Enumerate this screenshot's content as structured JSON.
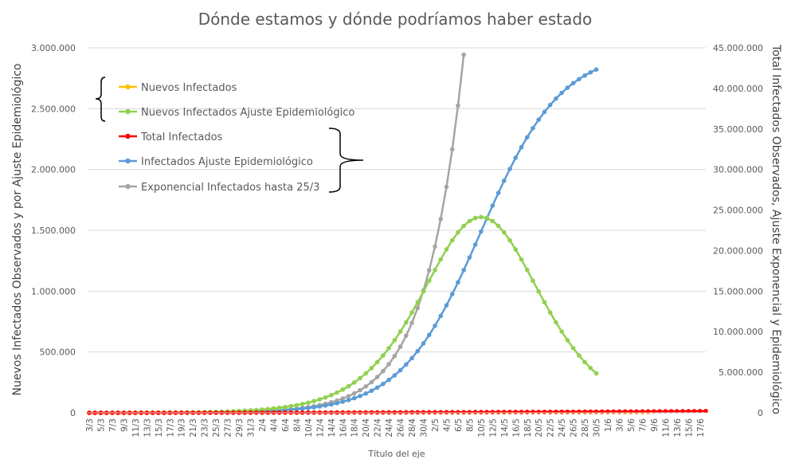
{
  "chart_data": {
    "type": "line",
    "title": "Dónde estamos y dónde podríamos haber estado",
    "xlabel": "Título del eje",
    "ylabel_left": "Nuevos Infectados Observados y por Ajuste Epidemiológico",
    "ylabel_right": "Total Infectados Observados, Ajuste Exponencial y Epidemiológico",
    "ylim_left": [
      0,
      3000000
    ],
    "ylim_right": [
      0,
      45000000
    ],
    "yticks_left": [
      "0",
      "500.000",
      "1.000.000",
      "1.500.000",
      "2.000.000",
      "2.500.000",
      "3.000.000"
    ],
    "yticks_right": [
      "0",
      "5.000.000",
      "10.000.000",
      "15.000.000",
      "20.000.000",
      "25.000.000",
      "30.000.000",
      "35.000.000",
      "40.000.000",
      "45.000.000"
    ],
    "x_tick_labels": [
      "3/3",
      "5/3",
      "7/3",
      "9/3",
      "11/3",
      "13/3",
      "15/3",
      "17/3",
      "19/3",
      "21/3",
      "23/3",
      "25/3",
      "27/3",
      "29/3",
      "31/3",
      "2/4",
      "4/4",
      "6/4",
      "8/4",
      "10/4",
      "12/4",
      "14/4",
      "16/4",
      "18/4",
      "20/4",
      "22/4",
      "24/4",
      "26/4",
      "28/4",
      "30/4",
      "2/5",
      "4/5",
      "6/5",
      "8/5",
      "10/5",
      "12/5",
      "14/5",
      "16/5",
      "18/5",
      "20/5",
      "22/5",
      "24/5",
      "26/5",
      "28/5",
      "30/5",
      "1/6",
      "3/6",
      "5/6",
      "7/6",
      "9/6",
      "11/6",
      "13/6",
      "15/6",
      "17/6"
    ],
    "grid": true,
    "legend_groups": [
      "left",
      "right"
    ],
    "series": [
      {
        "name": "Nuevos Infectados",
        "axis": "left",
        "color": "#FFC000",
        "start": 0,
        "length": 98,
        "model": "observed_new",
        "values": []
      },
      {
        "name": "Nuevos Infectados Ajuste Epidemiológico",
        "axis": "left",
        "color": "#92D050",
        "start": 0,
        "length": 89,
        "model": "logistic_derivative",
        "params": {
          "K": 44700000,
          "r": 0.144,
          "t0": 68.0
        },
        "values": []
      },
      {
        "name": "Total Infectados",
        "axis": "right",
        "color": "#FF0000",
        "start": 0,
        "length": 108,
        "model": "observed_total",
        "values": []
      },
      {
        "name": "Infectados Ajuste Epidemiológico",
        "axis": "right",
        "color": "#5B9BD5",
        "start": 0,
        "length": 89,
        "model": "logistic",
        "params": {
          "K": 44700000,
          "r": 0.144,
          "t0": 68.0
        },
        "values": []
      },
      {
        "name": "Exponencial Infectados hasta 25/3",
        "axis": "right",
        "color": "#A5A5A5",
        "start": 0,
        "length": 66,
        "model": "exponential",
        "params": {
          "a": 2050,
          "b": 0.1535
        },
        "values": []
      }
    ]
  }
}
